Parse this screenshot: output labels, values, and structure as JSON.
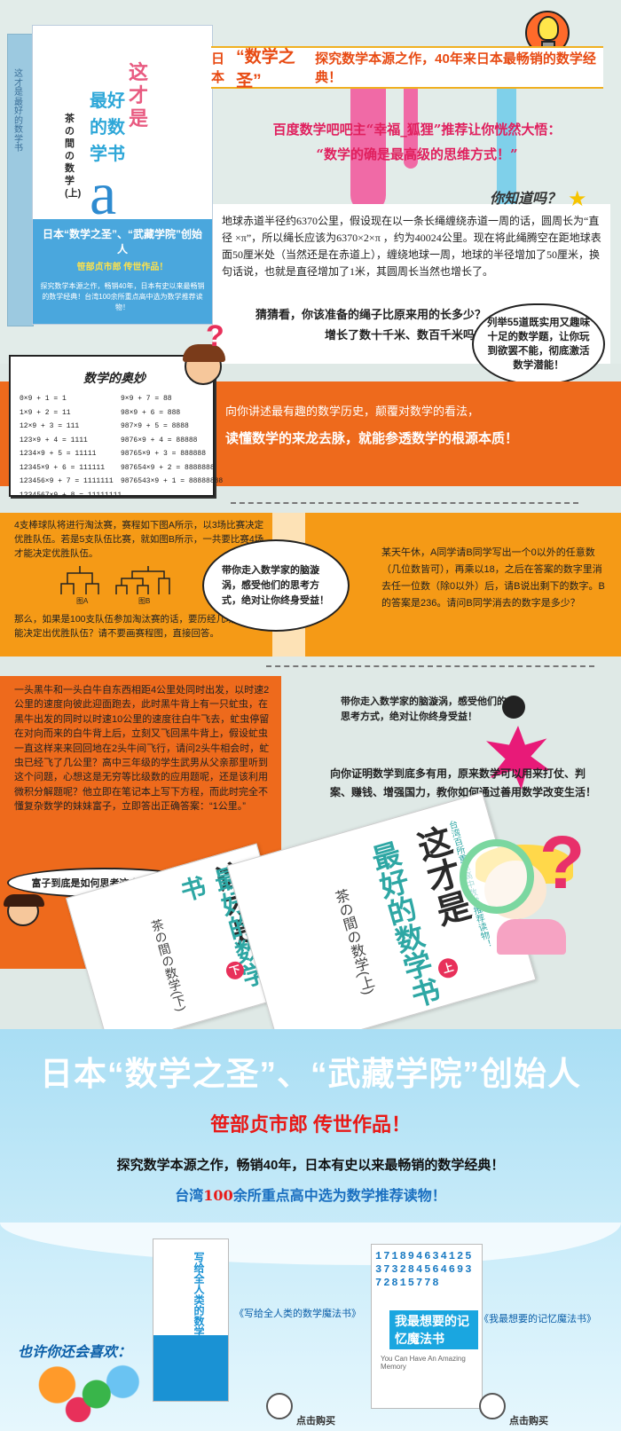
{
  "book": {
    "spine": "这才是最好的数学书",
    "title": "这才是",
    "title2": "最好的数学书",
    "sub": "茶の間の数学(上)",
    "letter": "a",
    "band_l1": "日本“数学之圣”、“武藏学院”创始人",
    "band_l2": "笹部贞市郎  传世作品！",
    "band_l3": "探究数学本源之作，畅销40年，日本有史以来最畅销的数学经典！台湾100余所重点高中选为数学推荐读物！"
  },
  "header": {
    "ribbon_prefix": "日本",
    "ribbon_hl": "“数学之圣”",
    "ribbon_suffix": "探究数学本源之作，40年来日本最畅销的数学经典！"
  },
  "slogan": {
    "line1": "百度数学吧吧主“幸福_狐狸”推荐让你恍然大悟：",
    "line2": "“数学的确是最高级的思维方式！”"
  },
  "know": {
    "title": "你知道吗？",
    "text": "地球赤道半径约6370公里，假设现在以一条长绳缠绕赤道一周的话，圆周长为“直径 ×π”，所以绳长应该为6370×2×π ，约为40024公里。现在将此绳腾空在距地球表面50厘米处（当然还是在赤道上），缠绕地球一周，地球的半径增加了50厘米，换句话说，也就是直径增加了1米，其圆周长当然也增长了。",
    "q1": "猜猜看，你该准备的绳子比原来用的长多少？",
    "q2": "增长了数十千米、数百千米吗？"
  },
  "bubble55": "列举55道既实用又趣味十足的数学题，让你玩到欲罢不能，彻底激活数学潜能！",
  "mathcard": {
    "title": "数学的奥妙",
    "left": "0×9 + 1 = 1\n1×9 + 2 = 11\n12×9 + 3 = 111\n123×9 + 4 = 1111\n1234×9 + 5 = 11111\n12345×9 + 6 = 111111\n123456×9 + 7 = 1111111\n1234567×9 + 8 = 11111111",
    "right": "9×9 + 7 = 88\n98×9 + 6 = 888\n987×9 + 5 = 8888\n9876×9 + 4 = 88888\n98765×9 + 3 = 888888\n987654×9 + 2 = 8888888\n9876543×9 + 1 = 88888888"
  },
  "history": {
    "line1": "向你讲述最有趣的数学历史，颠覆对数学的看法，",
    "line2": "读懂数学的来龙去脉，就能参透数学的根源本质！"
  },
  "baseball": {
    "top": "4支棒球队将进行淘汰赛，赛程如下图A所示，以3场比赛决定优胜队伍。若是5支队伍比赛，就如图B所示，一共要比赛4场才能决定优胜队伍。",
    "labelA": "图A",
    "labelB": "图B",
    "bottom": "那么，如果是100支队伍参加淘汰赛的话，要历经几场比赛才能决定出优胜队伍？请不要画赛程图，直接回答。"
  },
  "cloud1": "带你走入数学家的脑漩涡，感受他们的思考方式，绝对让你终身受益！",
  "guess": "某天午休，A同学请B同学写出一个0以外的任意数（几位数皆可），再乘以18，之后在答案的数字里消去任一位数（除0以外）后，请B说出剩下的数字。B的答案是236。请问B同学消去的数字是多少？",
  "fly": {
    "text": "一头黑牛和一头白牛自东西相距4公里处同时出发，以时速2公里的速度向彼此迎面跑去，此时黑牛背上有一只虻虫，在黑牛出发的同时以时速10公里的速度往白牛飞去，虻虫停留在对向而来的白牛背上后，立刻又飞回黑牛背上，假设虻虫一直这样来来回回地在2头牛间飞行，请问2头牛相会时，虻虫已经飞了几公里？高中三年级的学生武男从父亲那里听到这个问题，心想这是无穷等比级数的应用题呢，还是该利用微积分解题呢？他立即在笔记本上写下方程，而此时完全不懂复杂数学的妹妹富子，立即答出正确答案：“1公里。”",
    "question": "富子到底是如何思考这个问题的？"
  },
  "right4": {
    "a": "带你走入数学家的脑漩涡，感受他们的思考方式，绝对让你终身受益！",
    "b": "向你证明数学到底多有用，原来数学可以用来打仗、判案、赚钱、增强国力，教你如何通过善用数学改变生活！"
  },
  "books2": {
    "title": "这才是",
    "title2": "最好的数学书",
    "sub_a": "茶の間の数学(下)",
    "sub_b": "茶の間の数学(上)",
    "vol_a": "下",
    "vol_b": "上",
    "tag": "台湾百所重点高中数学推荐读物！"
  },
  "bottom": {
    "h1": "日本“数学之圣”、“武藏学院”创始人",
    "h2": "笹部贞市郎 传世作品！",
    "h3": "探究数学本源之作，畅销40年，日本有史以来最畅销的数学经典！",
    "h4_pre": "台湾",
    "h4_num": "100",
    "h4_post": "余所重点高中选为数学推荐读物！",
    "also": "也许你还会喜欢：",
    "rec1_title": "写给全人类的数学魔法书",
    "rec1_label": "《写给全人类的数学魔法书》",
    "rec2_nums": "17189463412537328456469372815778",
    "rec2_title": "我最想要的记忆魔法书",
    "rec2_eng": "You Can Have An Amazing Memory",
    "rec2_label": "《我最想要的记忆魔法书》",
    "buy": "点击购买"
  }
}
